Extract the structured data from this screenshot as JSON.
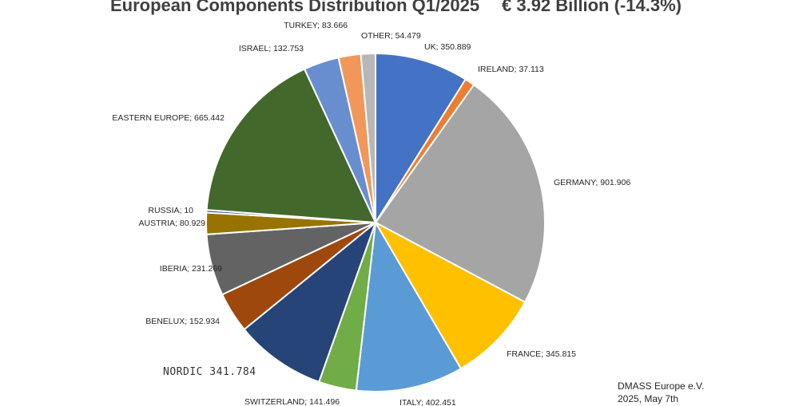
{
  "chart_data": {
    "type": "pie",
    "title": "European Components Distribution  Q1/2025",
    "total_label": "€ 3.92 Billion (-14.3%)",
    "start_angle_deg": 0,
    "direction": "clockwise",
    "source_lines": [
      "DMASS Europe e.V.",
      "2025, May 7th"
    ],
    "slices": [
      {
        "name": "UK",
        "value": 350.889,
        "label": "UK; 350.889",
        "color": "#4472C4"
      },
      {
        "name": "IRELAND",
        "value": 37.113,
        "label": "IRELAND; 37.113",
        "color": "#ED7D31"
      },
      {
        "name": "GERMANY",
        "value": 901.906,
        "label": "GERMANY; 901.906",
        "color": "#A5A5A5"
      },
      {
        "name": "FRANCE",
        "value": 345.815,
        "label": "FRANCE; 345.815",
        "color": "#FFC000"
      },
      {
        "name": "ITALY",
        "value": 402.451,
        "label": "ITALY; 402.451",
        "color": "#5B9BD5"
      },
      {
        "name": "SWITZERLAND",
        "value": 141.496,
        "label": "SWITZERLAND; 141.496",
        "color": "#70AD47"
      },
      {
        "name": "NORDIC",
        "value": 341.784,
        "label": "NORDIC  341.784",
        "color": "#264478"
      },
      {
        "name": "BENELUX",
        "value": 152.934,
        "label": "BENELUX; 152.934",
        "color": "#9E480E"
      },
      {
        "name": "IBERIA",
        "value": 231.269,
        "label": "IBERIA; 231.269",
        "color": "#636363"
      },
      {
        "name": "AUSTRIA",
        "value": 80.929,
        "label": "AUSTRIA; 80.929",
        "color": "#997300"
      },
      {
        "name": "RUSSIA",
        "value": 10,
        "label": "RUSSIA; 10",
        "color": "#2E5597"
      },
      {
        "name": "EASTERN EUROPE",
        "value": 665.442,
        "label": "EASTERN EUROPE; 665.442",
        "color": "#43682B"
      },
      {
        "name": "ISRAEL",
        "value": 132.753,
        "label": "ISRAEL; 132.753",
        "color": "#698ED0"
      },
      {
        "name": "TURKEY",
        "value": 83.666,
        "label": "TURKEY; 83.666",
        "color": "#F1975A"
      },
      {
        "name": "OTHER",
        "value": 54.479,
        "label": "OTHER; 54.479",
        "color": "#B7B7B7"
      }
    ]
  }
}
